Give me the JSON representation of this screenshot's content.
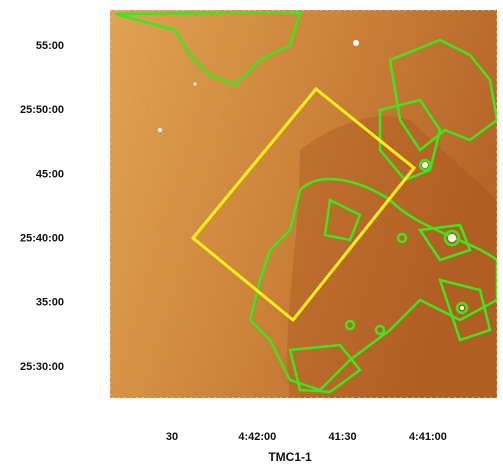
{
  "axes": {
    "y_labels": [
      "55:00",
      "25:50:00",
      "45:00",
      "25:40:00",
      "35:00",
      "25:30:00"
    ],
    "x_labels": [
      "30",
      "4:42:00",
      "41:30",
      "4:41:00"
    ]
  },
  "caption": "TMC1-1"
}
